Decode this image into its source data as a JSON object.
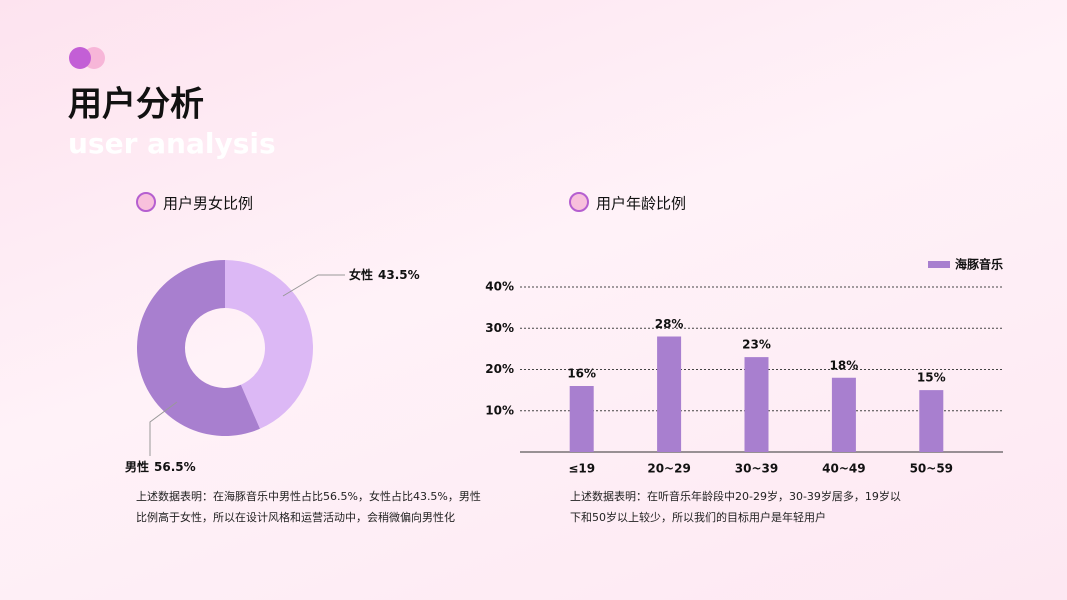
{
  "header": {
    "title": "用户分析",
    "subtitle": "user analysis"
  },
  "chart_data": [
    {
      "type": "donut",
      "title": "用户男女比例",
      "categories": [
        "女性",
        "男性"
      ],
      "values": [
        43.5,
        56.5
      ],
      "value_labels": [
        "43.5%",
        "56.5%"
      ],
      "colors": [
        "#dcb8f5",
        "#a87fcf"
      ],
      "caption": "上述数据表明：在海豚音乐中男性占比56.5%，女性占比43.5%，男性比例高于女性，所以在设计风格和运营活动中，会稍微偏向男性化"
    },
    {
      "type": "bar",
      "title": "用户年龄比例",
      "categories": [
        "≤19",
        "20~29",
        "30~39",
        "40~49",
        "50~59"
      ],
      "series": [
        {
          "name": "海豚音乐",
          "color": "#a87fcf",
          "values": [
            16,
            28,
            23,
            18,
            15
          ],
          "value_labels": [
            "16%",
            "28%",
            "23%",
            "18%",
            "15%"
          ]
        }
      ],
      "ylim": [
        0,
        40
      ],
      "yticks": [
        {
          "value": 10,
          "label": "10%"
        },
        {
          "value": 20,
          "label": "20%"
        },
        {
          "value": 30,
          "label": "30%"
        },
        {
          "value": 40,
          "label": "40%"
        }
      ],
      "grid": true,
      "legend": "top-right",
      "caption": "上述数据表明：在听音乐年龄段中20-29岁，30-39岁居多，19岁以下和50岁以上较少，所以我们的目标用户是年轻用户"
    }
  ]
}
